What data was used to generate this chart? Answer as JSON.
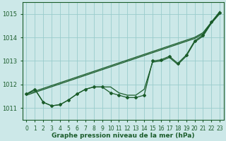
{
  "title": "Graphe pression niveau de la mer (hPa)",
  "bg_color": "#cce8e8",
  "grid_color": "#99cccc",
  "line_color": "#1a5c2a",
  "xlim": [
    -0.5,
    23.5
  ],
  "ylim": [
    1010.5,
    1015.5
  ],
  "yticks": [
    1011,
    1012,
    1013,
    1014,
    1015
  ],
  "xticks": [
    0,
    1,
    2,
    3,
    4,
    5,
    6,
    7,
    8,
    9,
    10,
    11,
    12,
    13,
    14,
    15,
    16,
    17,
    18,
    19,
    20,
    21,
    22,
    23
  ],
  "smooth_line1": [
    1011.6,
    1011.72,
    1011.84,
    1011.96,
    1012.08,
    1012.2,
    1012.32,
    1012.44,
    1012.56,
    1012.68,
    1012.8,
    1012.92,
    1013.04,
    1013.16,
    1013.28,
    1013.4,
    1013.52,
    1013.64,
    1013.76,
    1013.88,
    1014.0,
    1014.2,
    1014.65,
    1015.1
  ],
  "smooth_line2": [
    1011.55,
    1011.67,
    1011.79,
    1011.91,
    1012.03,
    1012.15,
    1012.27,
    1012.39,
    1012.51,
    1012.63,
    1012.75,
    1012.87,
    1012.99,
    1013.11,
    1013.23,
    1013.35,
    1013.47,
    1013.59,
    1013.71,
    1013.83,
    1013.95,
    1014.15,
    1014.6,
    1015.05
  ],
  "main_line": [
    1011.6,
    1011.8,
    1011.25,
    1011.1,
    1011.15,
    1011.35,
    1011.6,
    1011.8,
    1011.9,
    1011.9,
    1011.65,
    1011.55,
    1011.45,
    1011.45,
    1011.55,
    1013.0,
    1013.05,
    1013.2,
    1012.9,
    1013.25,
    1013.85,
    1014.1,
    1014.65,
    1015.05
  ],
  "upper_line": [
    1011.6,
    1011.8,
    1011.25,
    1011.1,
    1011.15,
    1011.35,
    1011.6,
    1011.8,
    1011.9,
    1011.9,
    1011.9,
    1011.65,
    1011.55,
    1011.55,
    1011.8,
    1012.95,
    1013.0,
    1013.15,
    1012.85,
    1013.2,
    1013.8,
    1014.05,
    1014.6,
    1015.0
  ]
}
